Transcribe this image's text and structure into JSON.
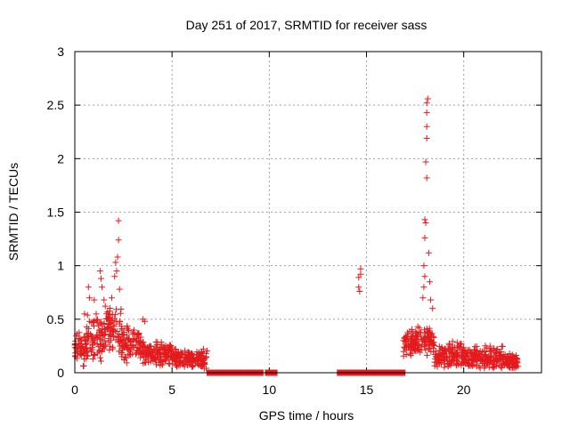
{
  "chart_data": {
    "type": "scatter",
    "title": "Day 251 of 2017, SRMTID for receiver sass",
    "xlabel": "GPS time / hours",
    "ylabel": "SRMTID / TECUs",
    "xlim": [
      0,
      24
    ],
    "ylim": [
      0,
      3
    ],
    "xticks": [
      0,
      5,
      10,
      15,
      20
    ],
    "xtick_labels": [
      "0",
      "5",
      "10",
      "15",
      "20"
    ],
    "yticks": [
      0,
      0.5,
      1,
      1.5,
      2,
      2.5,
      3
    ],
    "ytick_labels": [
      "0",
      "0.5",
      "1",
      "1.5",
      "2",
      "2.5",
      "3"
    ],
    "grid": true,
    "marker": "+",
    "marker_color": "#e41a1c",
    "series": [
      {
        "name": "SRMTID",
        "clusters": [
          {
            "x_range": [
              0.0,
              0.6
            ],
            "y_center": 0.22,
            "y_spread": 0.12
          },
          {
            "x_range": [
              0.6,
              1.4
            ],
            "y_center": 0.32,
            "y_spread": 0.14
          },
          {
            "x_range": [
              1.4,
              2.4
            ],
            "y_center": 0.4,
            "y_spread": 0.16
          },
          {
            "x_range": [
              2.4,
              3.5
            ],
            "y_center": 0.26,
            "y_spread": 0.12
          },
          {
            "x_range": [
              3.5,
              5.0
            ],
            "y_center": 0.18,
            "y_spread": 0.08
          },
          {
            "x_range": [
              5.0,
              6.8
            ],
            "y_center": 0.13,
            "y_spread": 0.07
          },
          {
            "x_range": [
              13.6,
              14.7
            ],
            "y_center": 0.0,
            "y_spread": 0.0
          },
          {
            "x_range": [
              16.9,
              18.5
            ],
            "y_center": 0.3,
            "y_spread": 0.1
          },
          {
            "x_range": [
              18.5,
              20.0
            ],
            "y_center": 0.16,
            "y_spread": 0.09
          },
          {
            "x_range": [
              20.0,
              22.0
            ],
            "y_center": 0.14,
            "y_spread": 0.08
          },
          {
            "x_range": [
              22.0,
              22.8
            ],
            "y_center": 0.11,
            "y_spread": 0.06
          }
        ],
        "gaps_at_zero": [
          [
            6.8,
            9.7
          ],
          [
            9.8,
            10.4
          ],
          [
            13.5,
            17.0
          ]
        ],
        "outliers": [
          [
            0.2,
            0.25
          ],
          [
            0.5,
            0.55
          ],
          [
            0.7,
            0.8
          ],
          [
            0.75,
            0.7
          ],
          [
            1.0,
            0.68
          ],
          [
            1.1,
            0.55
          ],
          [
            1.3,
            0.95
          ],
          [
            1.35,
            0.88
          ],
          [
            1.4,
            0.8
          ],
          [
            1.5,
            0.68
          ],
          [
            1.9,
            0.7
          ],
          [
            2.05,
            0.9
          ],
          [
            2.1,
            1.03
          ],
          [
            2.15,
            0.95
          ],
          [
            2.2,
            1.08
          ],
          [
            2.25,
            1.42
          ],
          [
            2.25,
            1.24
          ],
          [
            2.3,
            0.78
          ],
          [
            3.5,
            0.5
          ],
          [
            3.6,
            0.48
          ],
          [
            14.7,
            0.97
          ],
          [
            14.7,
            0.92
          ],
          [
            14.6,
            0.89
          ],
          [
            14.6,
            0.8
          ],
          [
            14.65,
            0.76
          ],
          [
            17.9,
            0.7
          ],
          [
            17.95,
            1.0
          ],
          [
            18.0,
            1.26
          ],
          [
            18.05,
            1.4
          ],
          [
            18.0,
            1.43
          ],
          [
            18.1,
            1.82
          ],
          [
            18.05,
            1.97
          ],
          [
            18.1,
            2.19
          ],
          [
            18.1,
            2.3
          ],
          [
            18.1,
            2.43
          ],
          [
            18.1,
            2.52
          ],
          [
            18.15,
            2.56
          ],
          [
            18.2,
            1.12
          ],
          [
            18.25,
            0.85
          ],
          [
            18.3,
            0.68
          ],
          [
            18.0,
            0.9
          ],
          [
            17.95,
            0.8
          ],
          [
            18.4,
            0.6
          ]
        ]
      }
    ]
  }
}
